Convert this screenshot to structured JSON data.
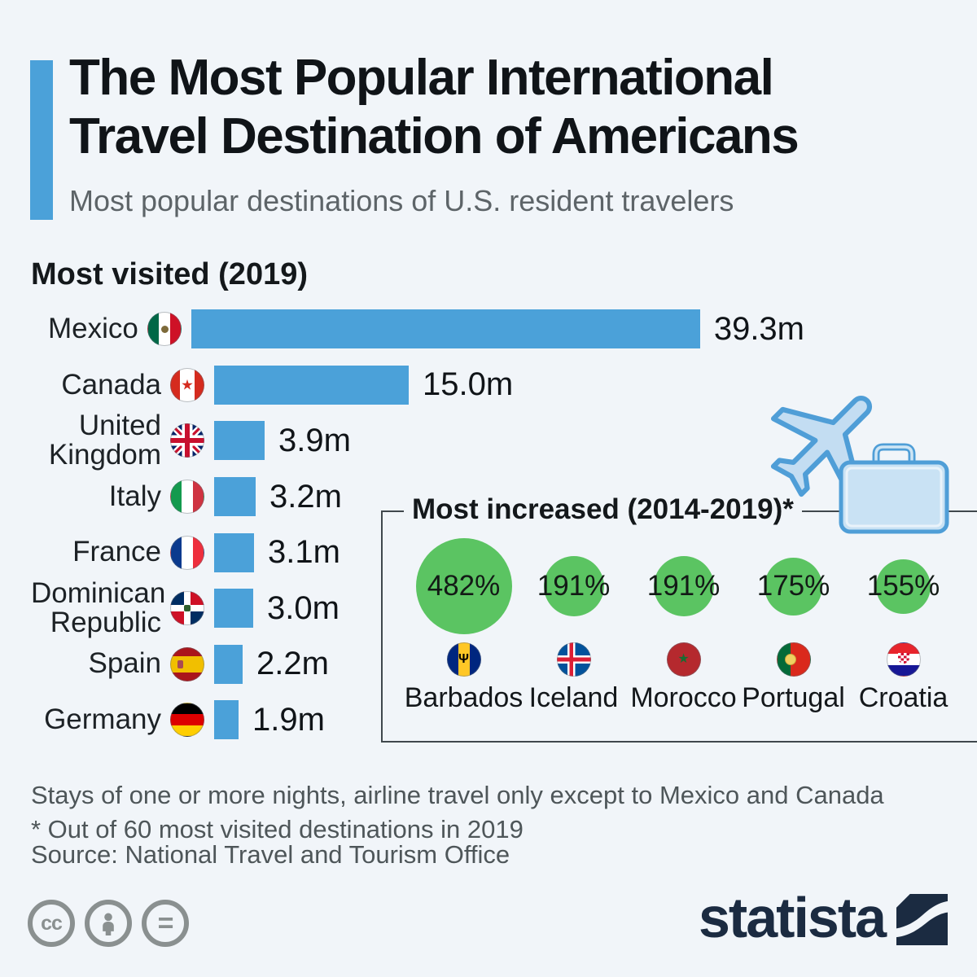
{
  "page": {
    "background_color": "#f1f5f9",
    "accent_color": "#4ba1d9"
  },
  "header": {
    "title_line1": "The Most Popular International",
    "title_line2": "Travel Destination of Americans",
    "subtitle": "Most popular destinations of U.S. resident travelers"
  },
  "chart_data": [
    {
      "type": "bar",
      "title": "Most visited (2019)",
      "orientation": "horizontal",
      "unit": "million travelers",
      "xlim": [
        0,
        39.3
      ],
      "categories": [
        "Mexico",
        "Canada",
        "United Kingdom",
        "Italy",
        "France",
        "Dominican Republic",
        "Spain",
        "Germany"
      ],
      "values": [
        39.3,
        15.0,
        3.9,
        3.2,
        3.1,
        3.0,
        2.2,
        1.9
      ],
      "value_labels": [
        "39.3m",
        "15.0m",
        "3.9m",
        "3.2m",
        "3.1m",
        "3.0m",
        "2.2m",
        "1.9m"
      ],
      "bar_color": "#4ba1d9",
      "flag_icons": [
        "mexico-flag-icon",
        "canada-flag-icon",
        "united-kingdom-flag-icon",
        "italy-flag-icon",
        "france-flag-icon",
        "dominican-republic-flag-icon",
        "spain-flag-icon",
        "germany-flag-icon"
      ]
    },
    {
      "type": "bubble",
      "title": "Most increased (2014-2019)*",
      "categories": [
        "Barbados",
        "Iceland",
        "Morocco",
        "Portugal",
        "Croatia"
      ],
      "values": [
        482,
        191,
        191,
        175,
        155
      ],
      "value_labels": [
        "482%",
        "191%",
        "191%",
        "175%",
        "155%"
      ],
      "bubble_color": "#5bc462",
      "flag_icons": [
        "barbados-flag-icon",
        "iceland-flag-icon",
        "morocco-flag-icon",
        "portugal-flag-icon",
        "croatia-flag-icon"
      ]
    }
  ],
  "illustration": {
    "icons": [
      "airplane-icon",
      "suitcase-icon"
    ],
    "fill": "#c3ddf2",
    "stroke": "#4f9ed7"
  },
  "footer": {
    "note1": "Stays of one or more nights, airline travel only except to Mexico and Canada",
    "note2": "* Out of 60 most visited destinations in 2019",
    "source": "Source: National Travel and Tourism Office",
    "license": {
      "cc_glyph": "cc",
      "nd_glyph": "=",
      "icons": [
        "cc-icon",
        "attribution-person-icon",
        "no-derivatives-equals-icon"
      ]
    },
    "brand": "statista"
  }
}
